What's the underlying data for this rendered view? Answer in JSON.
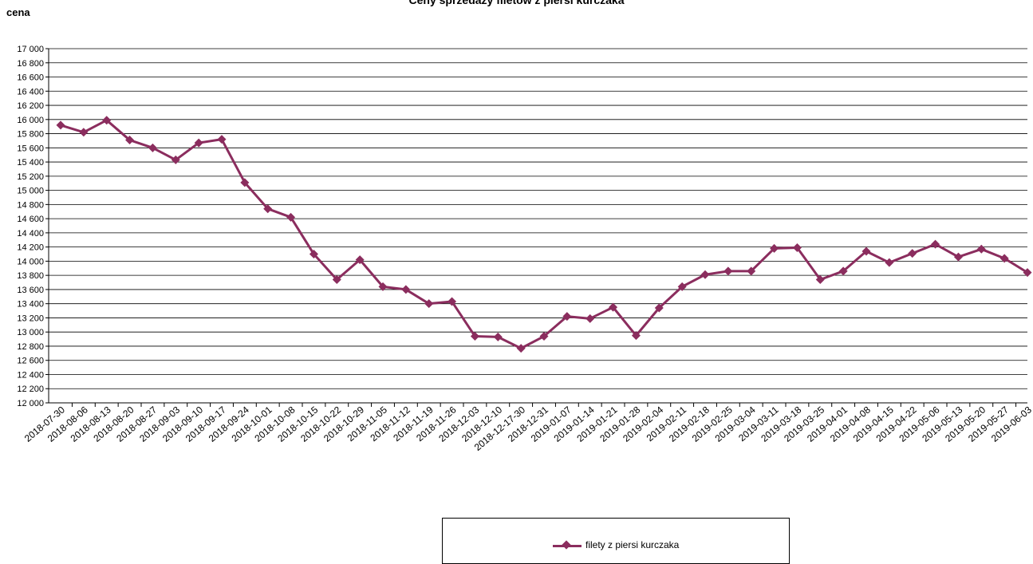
{
  "chart_data": {
    "type": "line",
    "title": "Ceny sprzedaży filetów z piersi kurczaka",
    "ylabel": "cena",
    "xlabel": "",
    "ylim": [
      12000,
      17000
    ],
    "ytick_step": 200,
    "grid": true,
    "legend": "bottom-center",
    "colors": {
      "series": "#8b2d5e",
      "grid": "#000000"
    },
    "categories": [
      "2018-07-30",
      "2018-08-06",
      "2018-08-13",
      "2018-08-20",
      "2018-08-27",
      "2018-09-03",
      "2018-09-10",
      "2018-09-17",
      "2018-09-24",
      "2018-10-01",
      "2018-10-08",
      "2018-10-15",
      "2018-10-22",
      "2018-10-29",
      "2018-11-05",
      "2018-11-12",
      "2018-11-19",
      "2018-11-26",
      "2018-12-03",
      "2018-12-10",
      "2018-12-17-30",
      "2018-12-31",
      "2019-01-07",
      "2019-01-14",
      "2019-01-21",
      "2019-01-28",
      "2019-02-04",
      "2019-02-11",
      "2019-02-18",
      "2019-02-25",
      "2019-03-04",
      "2019-03-11",
      "2019-03-18",
      "2019-03-25",
      "2019-04-01",
      "2019-04-08",
      "2019-04-15",
      "2019-04-22",
      "2019-05-06",
      "2019-05-13",
      "2019-05-20",
      "2019-05-27",
      "2019-06-03"
    ],
    "series": [
      {
        "name": "filety z piersi kurczaka",
        "values": [
          15920,
          15820,
          15990,
          15710,
          15600,
          15430,
          15670,
          15720,
          15110,
          14740,
          14620,
          14100,
          13740,
          14020,
          13640,
          13600,
          13400,
          13430,
          12940,
          12930,
          12770,
          12940,
          13220,
          13190,
          13350,
          12950,
          13340,
          13640,
          13810,
          13860,
          13860,
          14180,
          14190,
          13740,
          13860,
          14140,
          13980,
          14110,
          14240,
          14060,
          14170,
          14040,
          13840
        ]
      }
    ]
  }
}
